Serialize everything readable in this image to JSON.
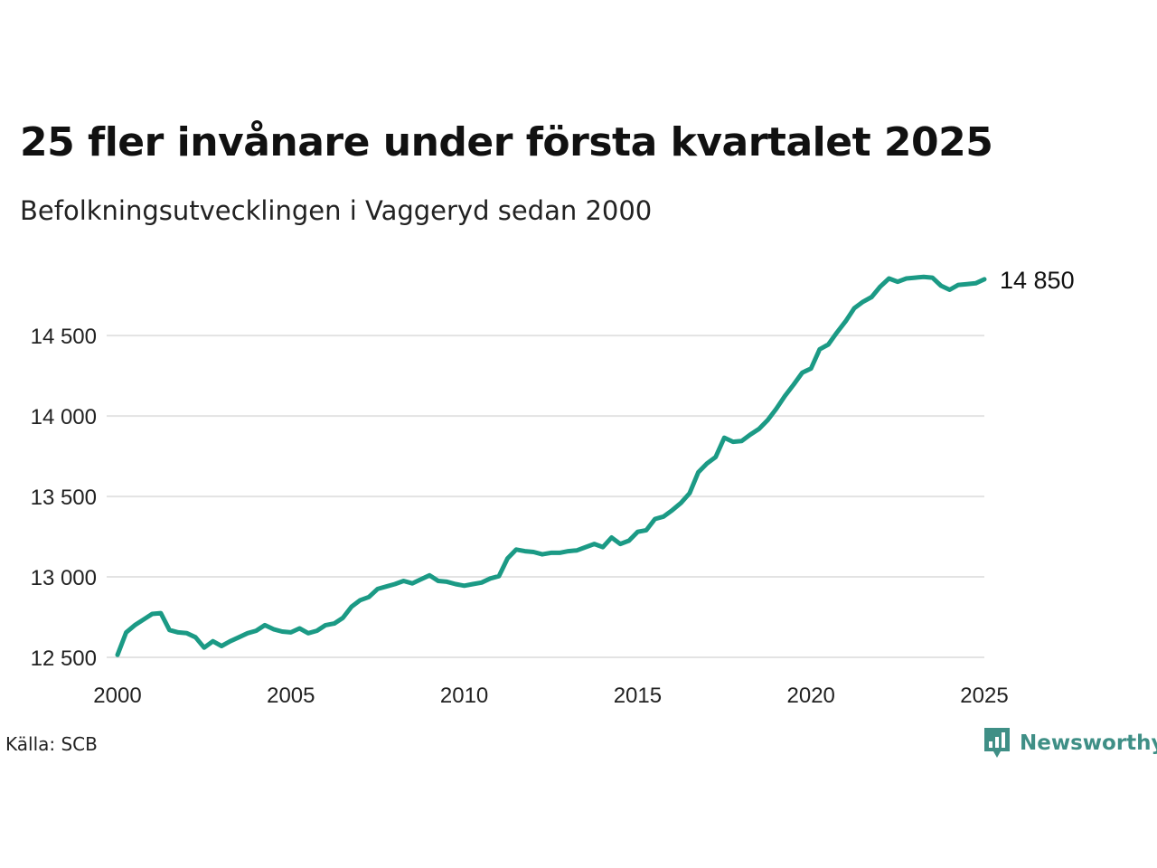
{
  "chart_data": {
    "type": "line",
    "title": "25 fler invånare under första kvartalet 2025",
    "subtitle": "Befolkningsutvecklingen i Vaggeryd sedan 2000",
    "xlabel": "",
    "ylabel": "",
    "xlim": [
      2000,
      2025
    ],
    "ylim": [
      12500,
      14900
    ],
    "x_ticks": [
      2000,
      2005,
      2010,
      2015,
      2020,
      2025
    ],
    "y_ticks": [
      12500,
      13000,
      13500,
      14000,
      14500
    ],
    "x_tick_labels": [
      "2000",
      "2005",
      "2010",
      "2015",
      "2020",
      "2025"
    ],
    "y_tick_labels": [
      "12 500",
      "13 000",
      "13 500",
      "14 000",
      "14 500"
    ],
    "grid": true,
    "line_color": "#1b9a85",
    "grid_color": "#e3e3e3",
    "end_label": "14 850",
    "series": [
      {
        "x": [
          2000.0,
          2000.25,
          2000.5,
          2000.75,
          2001.0,
          2001.25,
          2001.5,
          2001.75,
          2002.0,
          2002.25,
          2002.5,
          2002.75,
          2003.0,
          2003.25,
          2003.5,
          2003.75,
          2004.0,
          2004.25,
          2004.5,
          2004.75,
          2005.0,
          2005.25,
          2005.5,
          2005.75,
          2006.0,
          2006.25,
          2006.5,
          2006.75,
          2007.0,
          2007.25,
          2007.5,
          2007.75,
          2008.0,
          2008.25,
          2008.5,
          2008.75,
          2009.0,
          2009.25,
          2009.5,
          2009.75,
          2010.0,
          2010.25,
          2010.5,
          2010.75,
          2011.0,
          2011.25,
          2011.5,
          2011.75,
          2012.0,
          2012.25,
          2012.5,
          2012.75,
          2013.0,
          2013.25,
          2013.5,
          2013.75,
          2014.0,
          2014.25,
          2014.5,
          2014.75,
          2015.0,
          2015.25,
          2015.5,
          2015.75,
          2016.0,
          2016.25,
          2016.5,
          2016.75,
          2017.0,
          2017.25,
          2017.5,
          2017.75,
          2018.0,
          2018.25,
          2018.5,
          2018.75,
          2019.0,
          2019.25,
          2019.5,
          2019.75,
          2020.0,
          2020.25,
          2020.5,
          2020.75,
          2021.0,
          2021.25,
          2021.5,
          2021.75,
          2022.0,
          2022.25,
          2022.5,
          2022.75,
          2023.0,
          2023.25,
          2023.5,
          2023.75,
          2024.0,
          2024.25,
          2024.5,
          2024.75,
          2025.0
        ],
        "y": [
          12515,
          12655,
          12700,
          12735,
          12770,
          12775,
          12670,
          12655,
          12650,
          12625,
          12560,
          12600,
          12570,
          12600,
          12625,
          12650,
          12665,
          12700,
          12675,
          12660,
          12655,
          12680,
          12650,
          12665,
          12700,
          12710,
          12745,
          12815,
          12855,
          12875,
          12925,
          12940,
          12955,
          12975,
          12960,
          12985,
          13010,
          12975,
          12970,
          12955,
          12945,
          12955,
          12965,
          12990,
          13005,
          13115,
          13170,
          13160,
          13155,
          13140,
          13150,
          13150,
          13160,
          13165,
          13185,
          13205,
          13185,
          13245,
          13205,
          13225,
          13280,
          13290,
          13360,
          13375,
          13415,
          13460,
          13520,
          13650,
          13705,
          13745,
          13865,
          13840,
          13845,
          13885,
          13920,
          13975,
          14045,
          14125,
          14195,
          14270,
          14295,
          14415,
          14445,
          14520,
          14590,
          14670,
          14710,
          14740,
          14805,
          14855,
          14835,
          14855,
          14860,
          14865,
          14860,
          14810,
          14785,
          14815,
          14820,
          14825,
          14850
        ]
      }
    ]
  },
  "source": "Källa: SCB",
  "brand": {
    "name": "Newsworthy",
    "icon": "newsworthy-logo-icon",
    "color": "#3f8f86"
  }
}
